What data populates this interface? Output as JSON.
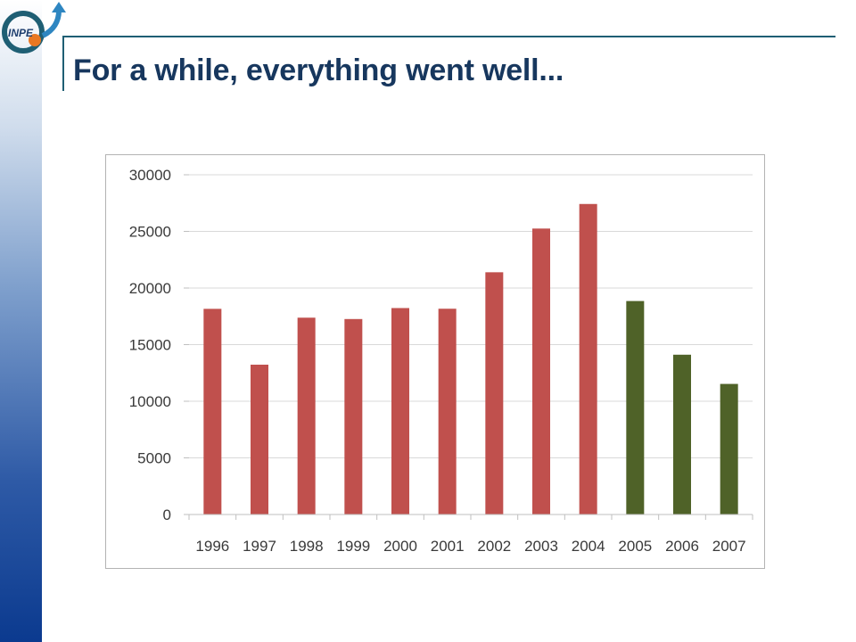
{
  "slide": {
    "title": "For a while, everything went well...",
    "logo_text": "INPE"
  },
  "colors": {
    "title": "#17375e",
    "bar_red": "#c0504d",
    "bar_green": "#4f6228",
    "grid": "#d9d9d9"
  },
  "chart_data": {
    "type": "bar",
    "categories": [
      "1996",
      "1997",
      "1998",
      "1999",
      "2000",
      "2001",
      "2002",
      "2003",
      "2004",
      "2005",
      "2006",
      "2007"
    ],
    "values": [
      18160,
      13230,
      17380,
      17260,
      18230,
      18170,
      21390,
      25250,
      27420,
      18850,
      14110,
      11530
    ],
    "bar_colors": [
      "#c0504d",
      "#c0504d",
      "#c0504d",
      "#c0504d",
      "#c0504d",
      "#c0504d",
      "#c0504d",
      "#c0504d",
      "#c0504d",
      "#4f6228",
      "#4f6228",
      "#4f6228"
    ],
    "yticks": [
      0,
      5000,
      10000,
      15000,
      20000,
      25000,
      30000
    ],
    "ylim": [
      0,
      30000
    ],
    "title": "",
    "xlabel": "",
    "ylabel": "",
    "grid": true,
    "legend": false
  }
}
